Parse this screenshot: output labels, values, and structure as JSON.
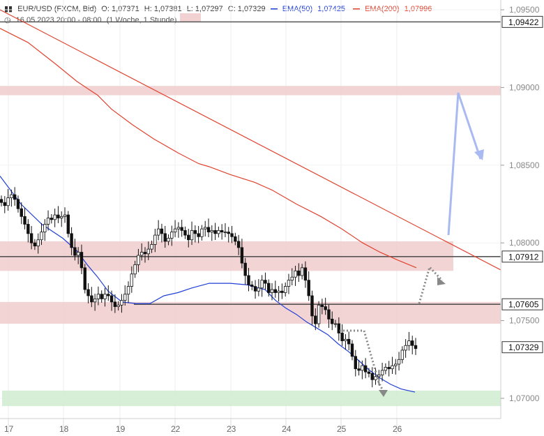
{
  "header": {
    "symbol": "EUR/USD (FXCM, Bid)",
    "open": "O: 1,07371",
    "high": "H: 1,07381",
    "low": "L: 1,07297",
    "close": "C: 1,07329",
    "ema50_label": "EMA(50)",
    "ema50_value": "1,07425",
    "ema200_label": "EMA(200)",
    "ema200_value": "1,07996",
    "range": "16.05.2023 20:00 - 08:00",
    "interval": "(1 Woche, 1 Stunde)"
  },
  "colors": {
    "ema50": "#1f3fd6",
    "ema200": "#e0432f",
    "resistance_zone": "#f0cccc",
    "support_zone": "#cfeccf",
    "projection_up": "#a9b9f2",
    "projection_dotted": "#888888",
    "trendline": "#e0432f"
  },
  "chart_data": {
    "type": "candlestick",
    "x_tick_labels": [
      "17",
      "18",
      "19",
      "22",
      "23",
      "24",
      "25",
      "26"
    ],
    "ylim": [
      1.0685,
      1.0955
    ],
    "y_tick_labels": [
      {
        "label": "1,09500",
        "value": 1.095
      },
      {
        "label": "1,09000",
        "value": 1.09
      },
      {
        "label": "1,08500",
        "value": 1.085
      },
      {
        "label": "1,08000",
        "value": 1.08
      },
      {
        "label": "1,07500",
        "value": 1.075
      },
      {
        "label": "1,07000",
        "value": 1.07
      }
    ],
    "price_labels": [
      {
        "label": "1,09422",
        "value": 1.09422,
        "line": true
      },
      {
        "label": "1,07912",
        "value": 1.07912,
        "line": true
      },
      {
        "label": "1,07605",
        "value": 1.07605,
        "line": true
      },
      {
        "label": "1,07329",
        "value": 1.07329,
        "line": false
      }
    ],
    "zones": [
      {
        "kind": "resistance",
        "from": 1.0895,
        "to": 1.0901
      },
      {
        "kind": "resistance",
        "from": 1.0782,
        "to": 1.0801
      },
      {
        "kind": "resistance",
        "from": 1.0748,
        "to": 1.0762
      },
      {
        "kind": "support",
        "from": 1.0695,
        "to": 1.0705
      }
    ],
    "close_prices": [
      1.0826,
      1.0824,
      1.0829,
      1.0831,
      1.0828,
      1.0822,
      1.0817,
      1.0812,
      1.0806,
      1.08,
      1.0798,
      1.0802,
      1.0807,
      1.0812,
      1.0816,
      1.0815,
      1.0818,
      1.0816,
      1.0817,
      1.0818,
      1.0806,
      1.0797,
      1.0792,
      1.0794,
      1.0784,
      1.077,
      1.0766,
      1.0762,
      1.0764,
      1.0767,
      1.0764,
      1.0767,
      1.0766,
      1.0762,
      1.0759,
      1.076,
      1.0763,
      1.0767,
      1.0772,
      1.078,
      1.0786,
      1.0792,
      1.0794,
      1.0793,
      1.0796,
      1.0799,
      1.0805,
      1.0809,
      1.0806,
      1.0801,
      1.0803,
      1.0807,
      1.0809,
      1.081,
      1.0808,
      1.0805,
      1.0802,
      1.0808,
      1.0806,
      1.0804,
      1.0809,
      1.081,
      1.0807,
      1.0808,
      1.0806,
      1.0808,
      1.0807,
      1.0807,
      1.0806,
      1.0804,
      1.0801,
      1.0797,
      1.0787,
      1.0779,
      1.0773,
      1.0772,
      1.0769,
      1.0771,
      1.0776,
      1.0774,
      1.0768,
      1.077,
      1.0768,
      1.0769,
      1.0768,
      1.0772,
      1.0776,
      1.0778,
      1.0782,
      1.0779,
      1.0784,
      1.0776,
      1.0766,
      1.0753,
      1.0748,
      1.076,
      1.0759,
      1.0757,
      1.0751,
      1.0748,
      1.0748,
      1.0742,
      1.0737,
      1.0738,
      1.0735,
      1.0727,
      1.0719,
      1.0718,
      1.0721,
      1.0717,
      1.0716,
      1.0712,
      1.0714,
      1.0715,
      1.0718,
      1.072,
      1.0719,
      1.0721,
      1.0722,
      1.0725,
      1.0731,
      1.0734,
      1.0737,
      1.0734,
      1.0732
    ],
    "ema50": [
      [
        0,
        1.0843
      ],
      [
        30,
        1.0825
      ],
      [
        60,
        1.0812
      ],
      [
        90,
        1.0803
      ],
      [
        110,
        1.0795
      ],
      [
        125,
        1.0786
      ],
      [
        140,
        1.0778
      ],
      [
        155,
        1.0769
      ],
      [
        175,
        1.0762
      ],
      [
        195,
        1.0761
      ],
      [
        215,
        1.0761
      ],
      [
        235,
        1.0766
      ],
      [
        255,
        1.0768
      ],
      [
        275,
        1.0771
      ],
      [
        300,
        1.0774
      ],
      [
        330,
        1.0774
      ],
      [
        355,
        1.0773
      ],
      [
        370,
        1.0771
      ],
      [
        380,
        1.077
      ],
      [
        395,
        1.0763
      ],
      [
        410,
        1.0758
      ],
      [
        425,
        1.0754
      ],
      [
        440,
        1.0749
      ],
      [
        455,
        1.0745
      ],
      [
        470,
        1.0741
      ],
      [
        485,
        1.0735
      ],
      [
        500,
        1.073
      ],
      [
        515,
        1.0724
      ],
      [
        530,
        1.0718
      ],
      [
        545,
        1.0713
      ],
      [
        560,
        1.0709
      ],
      [
        575,
        1.0706
      ],
      [
        595,
        1.0704
      ]
    ],
    "ema200": [
      [
        0,
        1.0938
      ],
      [
        40,
        1.0929
      ],
      [
        80,
        1.0915
      ],
      [
        110,
        1.0904
      ],
      [
        130,
        1.0898
      ],
      [
        140,
        1.0895
      ],
      [
        160,
        1.0886
      ],
      [
        190,
        1.0876
      ],
      [
        220,
        1.0867
      ],
      [
        255,
        1.0858
      ],
      [
        285,
        1.0851
      ],
      [
        300,
        1.0849
      ],
      [
        330,
        1.0844
      ],
      [
        365,
        1.0839
      ],
      [
        390,
        1.0834
      ],
      [
        425,
        1.0825
      ],
      [
        460,
        1.0817
      ],
      [
        490,
        1.0809
      ],
      [
        520,
        1.08
      ],
      [
        545,
        1.0794
      ],
      [
        570,
        1.0789
      ],
      [
        597,
        1.0784
      ]
    ],
    "trendline": {
      "start": [
        0,
        1.095
      ],
      "end": [
        718,
        1.07826
      ]
    }
  }
}
